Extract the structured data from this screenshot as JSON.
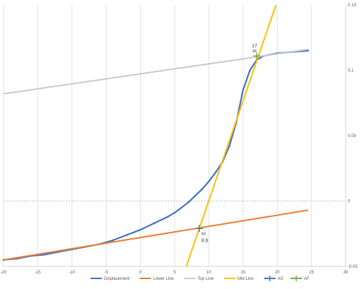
{
  "chart_data": {
    "type": "scatter",
    "title": "",
    "xlabel": "",
    "ylabel": "",
    "xlim": [
      -20,
      30
    ],
    "ylim": [
      -0.05,
      0.15
    ],
    "x_ticks": [
      "-20",
      "-15",
      "-10",
      "-5",
      "0",
      "5",
      "10",
      "15",
      "20",
      "25",
      "30"
    ],
    "y_ticks": [
      "-0.05",
      "0",
      "0.05",
      "0.1",
      "0.15"
    ],
    "grid": "vertical",
    "legend_position": "bottom",
    "series": [
      {
        "name": "Displacement",
        "color": "#4472c4",
        "style": "line-with-markers",
        "points": [
          [
            -20,
            -0.045
          ],
          [
            -18,
            -0.044
          ],
          [
            -16,
            -0.042
          ],
          [
            -14,
            -0.041
          ],
          [
            -12,
            -0.039
          ],
          [
            -10,
            -0.037
          ],
          [
            -8,
            -0.035
          ],
          [
            -6,
            -0.033
          ],
          [
            -4,
            -0.03
          ],
          [
            -2,
            -0.026
          ],
          [
            0,
            -0.022
          ],
          [
            2,
            -0.017
          ],
          [
            4,
            -0.012
          ],
          [
            5,
            -0.009
          ],
          [
            6,
            -0.005
          ],
          [
            7,
            -0.001
          ],
          [
            8,
            0.004
          ],
          [
            9,
            0.009
          ],
          [
            10,
            0.015
          ],
          [
            11,
            0.022
          ],
          [
            12,
            0.03
          ],
          [
            13,
            0.042
          ],
          [
            14,
            0.06
          ],
          [
            15,
            0.085
          ],
          [
            16,
            0.1
          ],
          [
            17,
            0.108
          ],
          [
            18,
            0.111
          ],
          [
            20,
            0.113
          ],
          [
            22,
            0.114
          ],
          [
            24.5,
            0.115
          ]
        ]
      },
      {
        "name": "Lower Line",
        "color": "#ed7d31",
        "style": "line",
        "points": [
          [
            -20,
            -0.045
          ],
          [
            24.5,
            -0.007
          ]
        ]
      },
      {
        "name": "Top Line",
        "color": "#c9c9c9",
        "style": "line",
        "points": [
          [
            -20,
            0.082
          ],
          [
            24.5,
            0.116
          ]
        ]
      },
      {
        "name": "Mid Line",
        "color": "#ffc000",
        "style": "line",
        "points": [
          [
            6.7,
            -0.05
          ],
          [
            19.8,
            0.15
          ]
        ]
      },
      {
        "name": "AS",
        "color": "#4472c4",
        "style": "marker",
        "points": [
          [
            8.6,
            -0.021
          ]
        ]
      },
      {
        "name": "AF",
        "color": "#70ad47",
        "style": "marker",
        "points": [
          [
            17,
            0.111
          ]
        ]
      }
    ],
    "annotations": [
      {
        "text": "AS",
        "x": 8.6,
        "y": -0.021
      },
      {
        "text": "8.6",
        "x": 8.6,
        "y": -0.021
      },
      {
        "text": "AF",
        "x": 17,
        "y": 0.111
      },
      {
        "text": "17",
        "x": 17,
        "y": 0.111
      }
    ]
  }
}
